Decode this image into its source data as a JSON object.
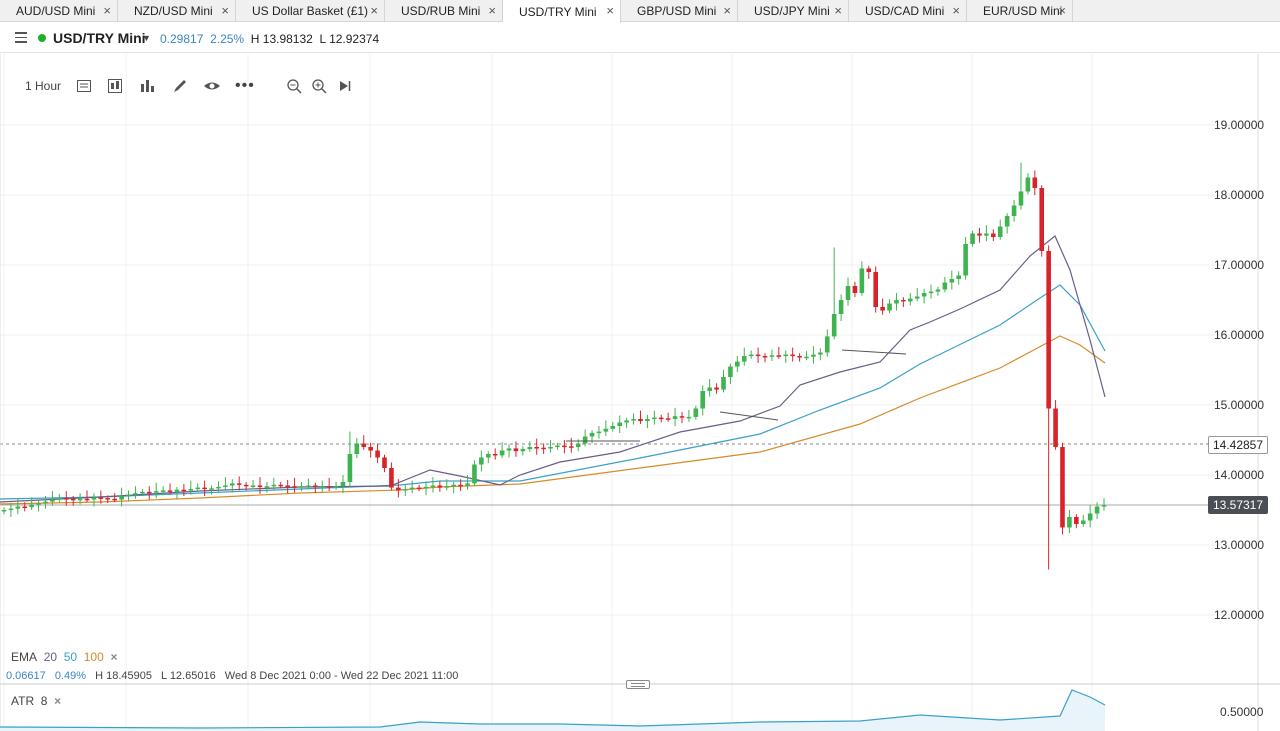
{
  "tabs": [
    {
      "label": "AUD/USD Mini",
      "active": false
    },
    {
      "label": "NZD/USD Mini",
      "active": false
    },
    {
      "label": "US Dollar Basket (£1)",
      "active": false
    },
    {
      "label": "USD/RUB Mini",
      "active": false
    },
    {
      "label": "USD/TRY Mini",
      "active": true
    },
    {
      "label": "GBP/USD Mini",
      "active": false
    },
    {
      "label": "USD/JPY Mini",
      "active": false
    },
    {
      "label": "USD/CAD Mini",
      "active": false
    },
    {
      "label": "EUR/USD Mini",
      "active": false
    }
  ],
  "tab_close_glyph": "×",
  "header": {
    "instrument": "USD/TRY Mini",
    "change": "0.29817",
    "change_pct": "2.25%",
    "high": "H 13.98132",
    "low": "L 12.92374",
    "status_color": "#1fae2c"
  },
  "toolbar": {
    "interval": "1 Hour",
    "icons": [
      "chart-type-icon",
      "candles-icon",
      "indicators-icon",
      "draw-icon",
      "eye-icon",
      "more-icon",
      "zoom-out-icon",
      "zoom-in-icon",
      "scroll-end-icon"
    ]
  },
  "price_axis": {
    "ticks": [
      "19.00000",
      "18.00000",
      "17.00000",
      "16.00000",
      "15.00000",
      "14.00000",
      "13.00000",
      "12.00000"
    ],
    "crosshair_price": "14.42857",
    "last_price": "13.57317"
  },
  "ema_legend": {
    "label": "EMA",
    "p1": "20",
    "p2": "50",
    "p3": "100",
    "close": "×",
    "colors": {
      "p1": "#6a5d8a",
      "p2": "#3aa0c8",
      "p3": "#d88a2a"
    }
  },
  "stats": {
    "change": "0.06617",
    "change_pct": "0.49%",
    "high": "H 18.45905",
    "low": "L 12.65016",
    "range": "Wed 8 Dec 2021 0:00 - Wed 22 Dec 2021 11:00"
  },
  "atr": {
    "label": "ATR",
    "period": "8",
    "close": "×",
    "tick": "0.50000"
  },
  "colors": {
    "up": "#3fb34f",
    "down": "#d9232a",
    "accent": "#3a86c4"
  }
}
